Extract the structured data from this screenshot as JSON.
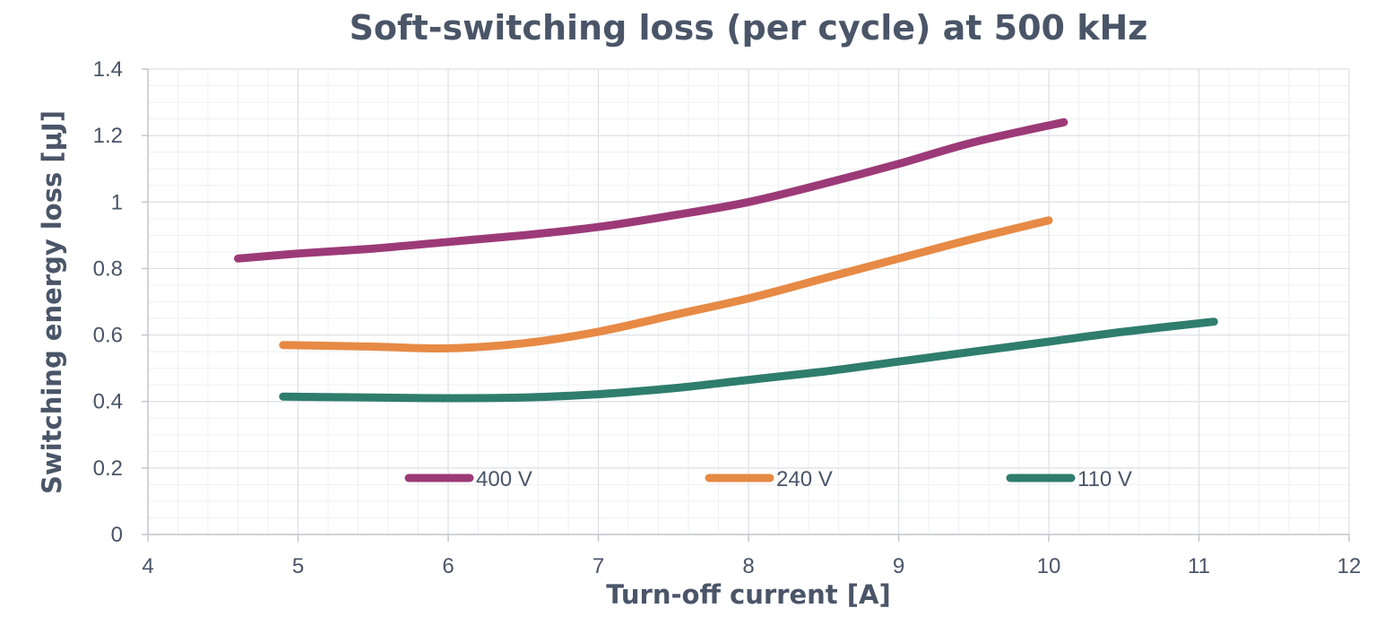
{
  "chart_data": {
    "type": "line",
    "title": "Soft-switching loss (per cycle) at 500 kHz",
    "xlabel": "Turn-off current [A]",
    "ylabel": "Switching energy loss [μJ]",
    "xlim": [
      4,
      12
    ],
    "ylim": [
      0,
      1.4
    ],
    "x_ticks": [
      4,
      5,
      6,
      7,
      8,
      9,
      10,
      11,
      12
    ],
    "x_tick_labels": [
      "4",
      "5",
      "6",
      "7",
      "8",
      "9",
      "10",
      "11",
      "12"
    ],
    "y_ticks": [
      0,
      0.2,
      0.4,
      0.6,
      0.8,
      1.0,
      1.2,
      1.4
    ],
    "y_tick_labels": [
      "0",
      "0.2",
      "0.4",
      "0.6",
      "0.8",
      "1",
      "1.2",
      "1.4"
    ],
    "grid": true,
    "minor_grid": true,
    "legend_position": "bottom-inside",
    "series": [
      {
        "name": "400 V",
        "color": "#9c3a78",
        "points": [
          [
            4.6,
            0.83
          ],
          [
            5,
            0.845
          ],
          [
            5.5,
            0.86
          ],
          [
            6,
            0.88
          ],
          [
            6.5,
            0.9
          ],
          [
            7,
            0.925
          ],
          [
            7.5,
            0.96
          ],
          [
            8,
            1.0
          ],
          [
            8.5,
            1.055
          ],
          [
            9,
            1.115
          ],
          [
            9.5,
            1.18
          ],
          [
            10.1,
            1.24
          ]
        ]
      },
      {
        "name": "240 V",
        "color": "#e68a45",
        "points": [
          [
            4.9,
            0.57
          ],
          [
            5.5,
            0.565
          ],
          [
            6,
            0.56
          ],
          [
            6.5,
            0.575
          ],
          [
            7,
            0.61
          ],
          [
            7.5,
            0.66
          ],
          [
            8,
            0.71
          ],
          [
            8.5,
            0.77
          ],
          [
            9,
            0.83
          ],
          [
            9.5,
            0.89
          ],
          [
            10,
            0.945
          ]
        ]
      },
      {
        "name": "110 V",
        "color": "#2f7d6d",
        "points": [
          [
            4.9,
            0.415
          ],
          [
            5.5,
            0.412
          ],
          [
            6,
            0.41
          ],
          [
            6.5,
            0.412
          ],
          [
            7,
            0.422
          ],
          [
            7.5,
            0.44
          ],
          [
            8,
            0.465
          ],
          [
            8.5,
            0.49
          ],
          [
            9,
            0.52
          ],
          [
            9.5,
            0.55
          ],
          [
            10,
            0.58
          ],
          [
            10.5,
            0.61
          ],
          [
            11.1,
            0.64
          ]
        ]
      }
    ]
  }
}
